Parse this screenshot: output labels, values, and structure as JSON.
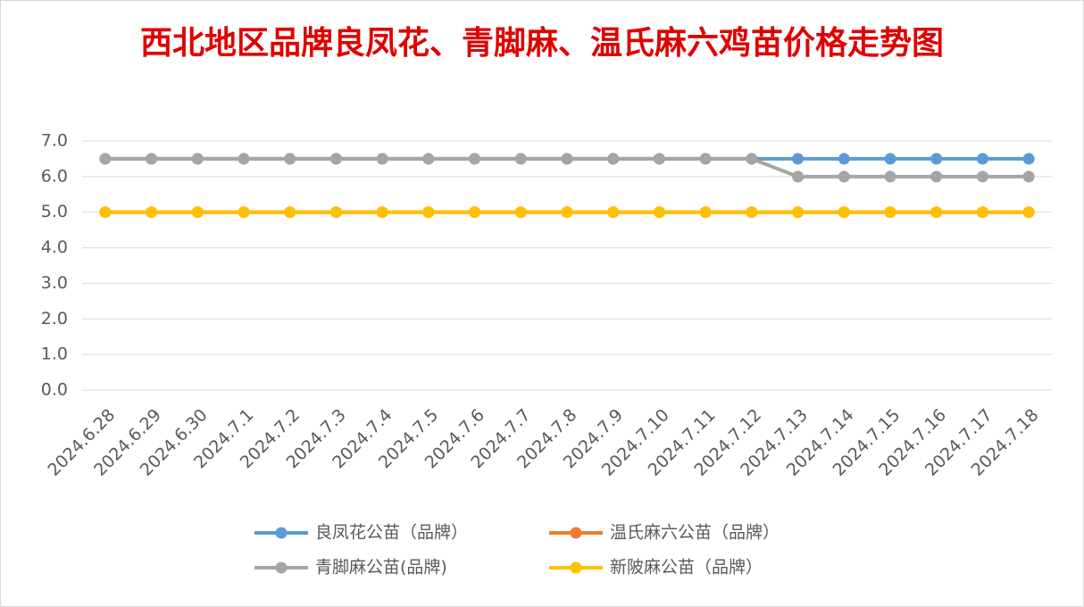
{
  "chart_data": {
    "type": "line",
    "title": "西北地区品牌良凤花、青脚麻、温氏麻六鸡苗价格走势图",
    "categories": [
      "2024.6.28",
      "2024.6.29",
      "2024.6.30",
      "2024.7.1",
      "2024.7.2",
      "2024.7.3",
      "2024.7.4",
      "2024.7.5",
      "2024.7.6",
      "2024.7.7",
      "2024.7.8",
      "2024.7.9",
      "2024.7.10",
      "2024.7.11",
      "2024.7.12",
      "2024.7.13",
      "2024.7.14",
      "2024.7.15",
      "2024.7.16",
      "2024.7.17",
      "2024.7.18"
    ],
    "series": [
      {
        "name": "良凤花公苗（品牌）",
        "color": "#5b9bd5",
        "values": [
          6.5,
          6.5,
          6.5,
          6.5,
          6.5,
          6.5,
          6.5,
          6.5,
          6.5,
          6.5,
          6.5,
          6.5,
          6.5,
          6.5,
          6.5,
          6.5,
          6.5,
          6.5,
          6.5,
          6.5,
          6.5
        ]
      },
      {
        "name": "温氏麻六公苗（品牌）",
        "color": "#ed7d31",
        "values": [
          5,
          5,
          5,
          5,
          5,
          5,
          5,
          5,
          5,
          5,
          5,
          5,
          5,
          5,
          5,
          5,
          5,
          5,
          5,
          5,
          5
        ]
      },
      {
        "name": "青脚麻公苗(品牌)",
        "color": "#a5a5a5",
        "values": [
          6.5,
          6.5,
          6.5,
          6.5,
          6.5,
          6.5,
          6.5,
          6.5,
          6.5,
          6.5,
          6.5,
          6.5,
          6.5,
          6.5,
          6.5,
          6,
          6,
          6,
          6,
          6,
          6
        ]
      },
      {
        "name": "新陂麻公苗（品牌）",
        "color": "#ffc000",
        "values": [
          5,
          5,
          5,
          5,
          5,
          5,
          5,
          5,
          5,
          5,
          5,
          5,
          5,
          5,
          5,
          5,
          5,
          5,
          5,
          5,
          5
        ]
      }
    ],
    "ylim": [
      0,
      7
    ],
    "yticks": [
      {
        "value": 0,
        "label": "0.0"
      },
      {
        "value": 1,
        "label": "1.0"
      },
      {
        "value": 2,
        "label": "2.0"
      },
      {
        "value": 3,
        "label": "3.0"
      },
      {
        "value": 4,
        "label": "4.0"
      },
      {
        "value": 5,
        "label": "5.0"
      },
      {
        "value": 6,
        "label": "6.0"
      },
      {
        "value": 7,
        "label": "7.0"
      }
    ],
    "grid": true,
    "legend": "bottom"
  }
}
